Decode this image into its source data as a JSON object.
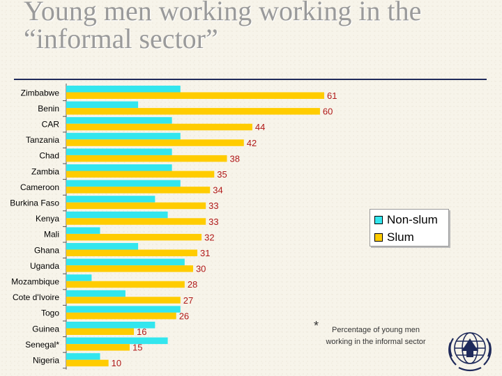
{
  "title": {
    "line1": "Young men working working in the",
    "line2": "“informal sector”"
  },
  "legend": {
    "non_slum": "Non-slum",
    "slum": "Slum"
  },
  "footnote": {
    "marker": "*",
    "text": "Percentage of young men working in the informal sector"
  },
  "colors": {
    "non_slum": "#33e6ee",
    "slum": "#ffcc00",
    "value_label": "#b01818",
    "rule": "#1f2a5a"
  },
  "chart_data": {
    "type": "bar",
    "orientation": "horizontal",
    "xlim": [
      0,
      61
    ],
    "categories": [
      "Zimbabwe",
      "Benin",
      "CAR",
      "Tanzania",
      "Chad",
      "Zambia",
      "Cameroon",
      "Burkina Faso",
      "Kenya",
      "Mali",
      "Ghana",
      "Uganda",
      "Mozambique",
      "Cote d'Ivoire",
      "Togo",
      "Guinea",
      "Senegal*",
      "Nigeria"
    ],
    "series": [
      {
        "name": "Non-slum",
        "values": [
          27,
          17,
          25,
          27,
          25,
          25,
          27,
          21,
          24,
          8,
          17,
          28,
          6,
          14,
          27,
          21,
          24,
          8
        ]
      },
      {
        "name": "Slum",
        "values": [
          61,
          60,
          44,
          42,
          38,
          35,
          34,
          33,
          33,
          32,
          31,
          30,
          28,
          27,
          26,
          16,
          15,
          10
        ]
      }
    ],
    "data_labels": [
      "61",
      "60",
      "44",
      "42",
      "38",
      "35",
      "34",
      "33",
      "33",
      "32",
      "31",
      "30",
      "28",
      "27",
      "26",
      "16",
      "15",
      "10"
    ]
  }
}
